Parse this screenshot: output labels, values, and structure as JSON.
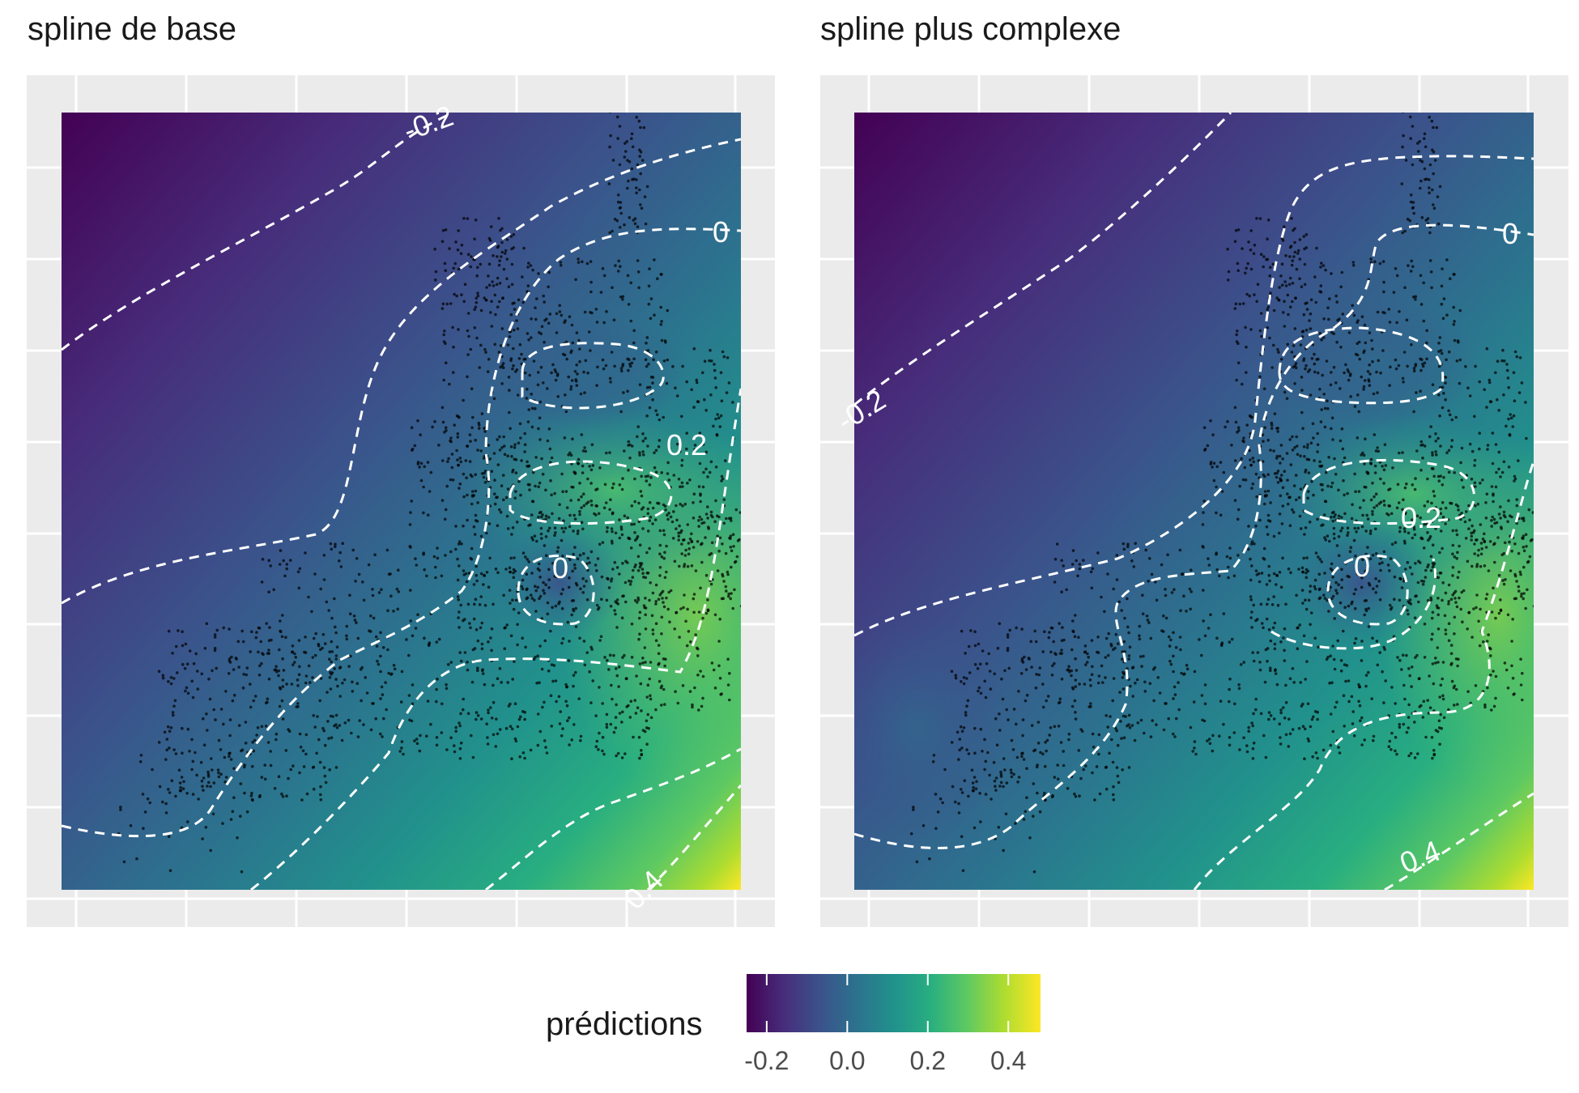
{
  "chart_data": [
    {
      "type": "heatmap",
      "title": "spline de base",
      "xlabel": "",
      "ylabel": "",
      "grid": true,
      "colormap": "viridis",
      "overlay": "points (observations)",
      "contours": {
        "style": "dashed white",
        "labels": [
          "-0.2",
          "0",
          "0.2",
          "0",
          "0.4"
        ]
      }
    },
    {
      "type": "heatmap",
      "title": "spline plus complexe",
      "xlabel": "",
      "ylabel": "",
      "grid": true,
      "colormap": "viridis",
      "overlay": "points (observations)",
      "contours": {
        "style": "dashed white",
        "labels": [
          "-0.2",
          "0",
          "0.2",
          "0",
          "0.4"
        ]
      }
    }
  ],
  "legend": {
    "title": "prédictions",
    "placement": "bottom",
    "range": [
      -0.25,
      0.48
    ],
    "ticks": [
      {
        "value": -0.2,
        "label": "-0.2"
      },
      {
        "value": 0.0,
        "label": "0.0"
      },
      {
        "value": 0.2,
        "label": "0.2"
      },
      {
        "value": 0.4,
        "label": "0.4"
      }
    ],
    "colors": [
      "#440154",
      "#472d7b",
      "#3b528b",
      "#2c728e",
      "#21918c",
      "#28ae80",
      "#5ec962",
      "#addc30",
      "#fde725"
    ]
  }
}
